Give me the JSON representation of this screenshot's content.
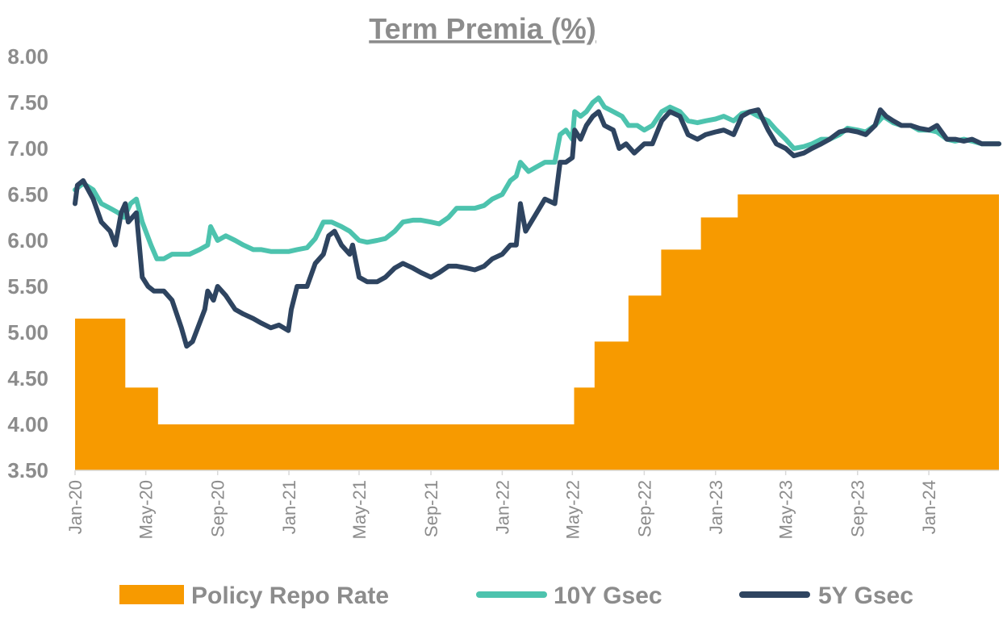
{
  "chart_data": {
    "type": "line",
    "title": "Term Premia (%)",
    "ylim": [
      3.5,
      8.0
    ],
    "yticks": [
      "8.00",
      "7.50",
      "7.00",
      "6.50",
      "6.00",
      "5.50",
      "5.00",
      "4.50",
      "4.00",
      "3.50"
    ],
    "xlim": [
      "2020-01-01",
      "2024-04-30"
    ],
    "xticks": [
      "Jan-20",
      "May-20",
      "Sep-20",
      "Jan-21",
      "May-21",
      "Sep-21",
      "Jan-22",
      "May-22",
      "Sep-22",
      "Jan-23",
      "May-23",
      "Sep-23",
      "Jan-24"
    ],
    "grid": false,
    "legend_position": "bottom",
    "series": [
      {
        "name": "Policy Repo Rate",
        "type": "area",
        "step": true,
        "color": "#f79a00",
        "points": [
          [
            "2020-01-01",
            5.15
          ],
          [
            "2020-03-27",
            4.4
          ],
          [
            "2020-05-22",
            4.0
          ],
          [
            "2022-05-04",
            4.4
          ],
          [
            "2022-06-08",
            4.9
          ],
          [
            "2022-08-05",
            5.4
          ],
          [
            "2022-09-30",
            5.9
          ],
          [
            "2022-12-07",
            6.25
          ],
          [
            "2023-02-08",
            6.5
          ],
          [
            "2024-04-30",
            6.5
          ]
        ]
      },
      {
        "name": "10Y Gsec",
        "type": "line",
        "color": "#4dc3ae",
        "points": [
          [
            "2020-01-01",
            6.55
          ],
          [
            "2020-01-15",
            6.62
          ],
          [
            "2020-02-01",
            6.55
          ],
          [
            "2020-02-15",
            6.4
          ],
          [
            "2020-03-01",
            6.35
          ],
          [
            "2020-03-15",
            6.3
          ],
          [
            "2020-03-25",
            6.25
          ],
          [
            "2020-04-05",
            6.4
          ],
          [
            "2020-04-15",
            6.45
          ],
          [
            "2020-04-25",
            6.2
          ],
          [
            "2020-05-01",
            6.1
          ],
          [
            "2020-05-10",
            5.95
          ],
          [
            "2020-05-20",
            5.8
          ],
          [
            "2020-06-01",
            5.8
          ],
          [
            "2020-06-15",
            5.85
          ],
          [
            "2020-07-01",
            5.85
          ],
          [
            "2020-07-15",
            5.85
          ],
          [
            "2020-08-01",
            5.9
          ],
          [
            "2020-08-15",
            5.95
          ],
          [
            "2020-08-20",
            6.15
          ],
          [
            "2020-09-01",
            6.0
          ],
          [
            "2020-09-15",
            6.05
          ],
          [
            "2020-10-01",
            6.0
          ],
          [
            "2020-10-15",
            5.95
          ],
          [
            "2020-11-01",
            5.9
          ],
          [
            "2020-11-15",
            5.9
          ],
          [
            "2020-12-01",
            5.88
          ],
          [
            "2020-12-15",
            5.88
          ],
          [
            "2021-01-01",
            5.88
          ],
          [
            "2021-01-15",
            5.9
          ],
          [
            "2021-02-01",
            5.92
          ],
          [
            "2021-02-15",
            6.02
          ],
          [
            "2021-03-01",
            6.2
          ],
          [
            "2021-03-15",
            6.2
          ],
          [
            "2021-04-01",
            6.15
          ],
          [
            "2021-04-15",
            6.1
          ],
          [
            "2021-05-01",
            6.0
          ],
          [
            "2021-05-15",
            5.98
          ],
          [
            "2021-06-01",
            6.0
          ],
          [
            "2021-06-15",
            6.02
          ],
          [
            "2021-07-01",
            6.1
          ],
          [
            "2021-07-15",
            6.2
          ],
          [
            "2021-08-01",
            6.22
          ],
          [
            "2021-08-15",
            6.22
          ],
          [
            "2021-09-01",
            6.2
          ],
          [
            "2021-09-15",
            6.18
          ],
          [
            "2021-10-01",
            6.25
          ],
          [
            "2021-10-15",
            6.35
          ],
          [
            "2021-11-01",
            6.35
          ],
          [
            "2021-11-15",
            6.35
          ],
          [
            "2021-12-01",
            6.38
          ],
          [
            "2021-12-15",
            6.45
          ],
          [
            "2022-01-01",
            6.5
          ],
          [
            "2022-01-15",
            6.65
          ],
          [
            "2022-01-25",
            6.7
          ],
          [
            "2022-02-01",
            6.85
          ],
          [
            "2022-02-15",
            6.75
          ],
          [
            "2022-03-01",
            6.8
          ],
          [
            "2022-03-15",
            6.85
          ],
          [
            "2022-04-01",
            6.85
          ],
          [
            "2022-04-10",
            7.15
          ],
          [
            "2022-04-20",
            7.2
          ],
          [
            "2022-05-01",
            7.1
          ],
          [
            "2022-05-05",
            7.4
          ],
          [
            "2022-05-15",
            7.35
          ],
          [
            "2022-05-25",
            7.4
          ],
          [
            "2022-06-05",
            7.5
          ],
          [
            "2022-06-15",
            7.55
          ],
          [
            "2022-06-25",
            7.45
          ],
          [
            "2022-07-10",
            7.4
          ],
          [
            "2022-07-25",
            7.35
          ],
          [
            "2022-08-05",
            7.25
          ],
          [
            "2022-08-20",
            7.25
          ],
          [
            "2022-09-01",
            7.2
          ],
          [
            "2022-09-15",
            7.25
          ],
          [
            "2022-10-01",
            7.4
          ],
          [
            "2022-10-15",
            7.45
          ],
          [
            "2022-11-01",
            7.4
          ],
          [
            "2022-11-15",
            7.3
          ],
          [
            "2022-12-01",
            7.28
          ],
          [
            "2022-12-15",
            7.3
          ],
          [
            "2023-01-01",
            7.32
          ],
          [
            "2023-01-15",
            7.35
          ],
          [
            "2023-02-01",
            7.3
          ],
          [
            "2023-02-15",
            7.38
          ],
          [
            "2023-03-01",
            7.4
          ],
          [
            "2023-03-15",
            7.35
          ],
          [
            "2023-04-01",
            7.3
          ],
          [
            "2023-04-15",
            7.2
          ],
          [
            "2023-05-01",
            7.1
          ],
          [
            "2023-05-15",
            7.0
          ],
          [
            "2023-06-01",
            7.02
          ],
          [
            "2023-06-15",
            7.05
          ],
          [
            "2023-07-01",
            7.1
          ],
          [
            "2023-07-15",
            7.1
          ],
          [
            "2023-08-01",
            7.15
          ],
          [
            "2023-08-15",
            7.22
          ],
          [
            "2023-09-01",
            7.2
          ],
          [
            "2023-09-15",
            7.18
          ],
          [
            "2023-10-01",
            7.25
          ],
          [
            "2023-10-15",
            7.35
          ],
          [
            "2023-11-01",
            7.28
          ],
          [
            "2023-11-15",
            7.25
          ],
          [
            "2023-12-01",
            7.25
          ],
          [
            "2023-12-15",
            7.2
          ],
          [
            "2024-01-01",
            7.2
          ],
          [
            "2024-01-15",
            7.18
          ],
          [
            "2024-02-01",
            7.1
          ],
          [
            "2024-02-15",
            7.08
          ],
          [
            "2024-03-01",
            7.1
          ],
          [
            "2024-03-15",
            7.08
          ],
          [
            "2024-04-01",
            7.05
          ],
          [
            "2024-04-30",
            7.05
          ]
        ]
      },
      {
        "name": "5Y Gsec",
        "type": "line",
        "color": "#2e4460",
        "points": [
          [
            "2020-01-01",
            6.4
          ],
          [
            "2020-01-05",
            6.6
          ],
          [
            "2020-01-15",
            6.65
          ],
          [
            "2020-02-01",
            6.45
          ],
          [
            "2020-02-15",
            6.2
          ],
          [
            "2020-03-01",
            6.1
          ],
          [
            "2020-03-10",
            5.95
          ],
          [
            "2020-03-20",
            6.3
          ],
          [
            "2020-03-27",
            6.4
          ],
          [
            "2020-04-01",
            6.2
          ],
          [
            "2020-04-15",
            6.3
          ],
          [
            "2020-04-25",
            5.6
          ],
          [
            "2020-05-05",
            5.5
          ],
          [
            "2020-05-15",
            5.45
          ],
          [
            "2020-06-01",
            5.45
          ],
          [
            "2020-06-15",
            5.35
          ],
          [
            "2020-07-01",
            5.05
          ],
          [
            "2020-07-10",
            4.85
          ],
          [
            "2020-07-20",
            4.9
          ],
          [
            "2020-08-01",
            5.1
          ],
          [
            "2020-08-10",
            5.25
          ],
          [
            "2020-08-15",
            5.45
          ],
          [
            "2020-08-25",
            5.35
          ],
          [
            "2020-09-01",
            5.5
          ],
          [
            "2020-09-15",
            5.4
          ],
          [
            "2020-10-01",
            5.25
          ],
          [
            "2020-10-15",
            5.2
          ],
          [
            "2020-11-01",
            5.15
          ],
          [
            "2020-11-15",
            5.1
          ],
          [
            "2020-12-01",
            5.05
          ],
          [
            "2020-12-15",
            5.08
          ],
          [
            "2020-12-31",
            5.02
          ],
          [
            "2021-01-05",
            5.25
          ],
          [
            "2021-01-15",
            5.5
          ],
          [
            "2021-02-01",
            5.5
          ],
          [
            "2021-02-15",
            5.75
          ],
          [
            "2021-03-01",
            5.85
          ],
          [
            "2021-03-10",
            6.05
          ],
          [
            "2021-03-20",
            6.1
          ],
          [
            "2021-04-01",
            5.95
          ],
          [
            "2021-04-15",
            5.85
          ],
          [
            "2021-04-20",
            5.95
          ],
          [
            "2021-05-01",
            5.6
          ],
          [
            "2021-05-15",
            5.55
          ],
          [
            "2021-06-01",
            5.55
          ],
          [
            "2021-06-15",
            5.6
          ],
          [
            "2021-07-01",
            5.7
          ],
          [
            "2021-07-15",
            5.75
          ],
          [
            "2021-08-01",
            5.7
          ],
          [
            "2021-08-15",
            5.65
          ],
          [
            "2021-09-01",
            5.6
          ],
          [
            "2021-09-15",
            5.65
          ],
          [
            "2021-10-01",
            5.72
          ],
          [
            "2021-10-15",
            5.72
          ],
          [
            "2021-11-01",
            5.7
          ],
          [
            "2021-11-15",
            5.68
          ],
          [
            "2021-12-01",
            5.72
          ],
          [
            "2021-12-15",
            5.8
          ],
          [
            "2022-01-01",
            5.85
          ],
          [
            "2022-01-15",
            5.95
          ],
          [
            "2022-01-25",
            5.95
          ],
          [
            "2022-02-01",
            6.4
          ],
          [
            "2022-02-10",
            6.1
          ],
          [
            "2022-03-01",
            6.3
          ],
          [
            "2022-03-15",
            6.45
          ],
          [
            "2022-04-01",
            6.4
          ],
          [
            "2022-04-10",
            6.85
          ],
          [
            "2022-04-20",
            6.85
          ],
          [
            "2022-05-01",
            6.9
          ],
          [
            "2022-05-05",
            7.2
          ],
          [
            "2022-05-15",
            7.1
          ],
          [
            "2022-05-25",
            7.25
          ],
          [
            "2022-06-05",
            7.35
          ],
          [
            "2022-06-15",
            7.4
          ],
          [
            "2022-06-25",
            7.25
          ],
          [
            "2022-07-10",
            7.2
          ],
          [
            "2022-07-20",
            7.0
          ],
          [
            "2022-08-01",
            7.05
          ],
          [
            "2022-08-15",
            6.95
          ],
          [
            "2022-09-01",
            7.05
          ],
          [
            "2022-09-15",
            7.05
          ],
          [
            "2022-10-01",
            7.3
          ],
          [
            "2022-10-15",
            7.4
          ],
          [
            "2022-11-01",
            7.35
          ],
          [
            "2022-11-15",
            7.15
          ],
          [
            "2022-12-01",
            7.1
          ],
          [
            "2022-12-15",
            7.15
          ],
          [
            "2023-01-01",
            7.18
          ],
          [
            "2023-01-15",
            7.2
          ],
          [
            "2023-02-01",
            7.15
          ],
          [
            "2023-02-15",
            7.35
          ],
          [
            "2023-03-01",
            7.4
          ],
          [
            "2023-03-15",
            7.42
          ],
          [
            "2023-04-01",
            7.2
          ],
          [
            "2023-04-15",
            7.05
          ],
          [
            "2023-05-01",
            7.0
          ],
          [
            "2023-05-15",
            6.92
          ],
          [
            "2023-06-01",
            6.95
          ],
          [
            "2023-06-15",
            7.0
          ],
          [
            "2023-07-01",
            7.05
          ],
          [
            "2023-07-15",
            7.1
          ],
          [
            "2023-08-01",
            7.18
          ],
          [
            "2023-08-15",
            7.2
          ],
          [
            "2023-09-01",
            7.18
          ],
          [
            "2023-09-15",
            7.15
          ],
          [
            "2023-10-01",
            7.25
          ],
          [
            "2023-10-10",
            7.42
          ],
          [
            "2023-10-20",
            7.35
          ],
          [
            "2023-11-01",
            7.3
          ],
          [
            "2023-11-15",
            7.25
          ],
          [
            "2023-12-01",
            7.25
          ],
          [
            "2023-12-15",
            7.22
          ],
          [
            "2024-01-01",
            7.2
          ],
          [
            "2024-01-15",
            7.25
          ],
          [
            "2024-02-01",
            7.1
          ],
          [
            "2024-02-15",
            7.1
          ],
          [
            "2024-03-01",
            7.08
          ],
          [
            "2024-03-15",
            7.1
          ],
          [
            "2024-04-01",
            7.05
          ],
          [
            "2024-04-30",
            7.05
          ]
        ]
      }
    ]
  }
}
